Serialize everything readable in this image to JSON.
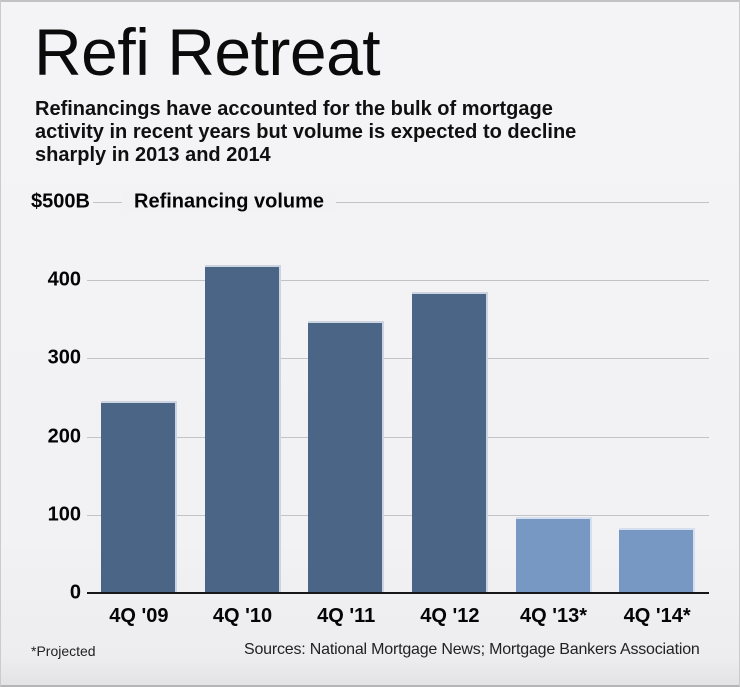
{
  "header": {
    "title": "Refi Retreat",
    "subtitle_lines": [
      "Refinancings have accounted for the bulk of mortgage",
      "activity in recent years but volume is expected to decline",
      "sharply in 2013 and 2014"
    ]
  },
  "chart_data": {
    "type": "bar",
    "title": "Refinancing volume",
    "y_top_label": "$500B",
    "categories": [
      "4Q '09",
      "4Q '10",
      "4Q '11",
      "4Q '12",
      "4Q '13*",
      "4Q '14*"
    ],
    "values": [
      245,
      420,
      348,
      385,
      97,
      83
    ],
    "projected": [
      false,
      false,
      false,
      false,
      true,
      true
    ],
    "yticks": [
      400,
      300,
      200,
      100,
      0
    ],
    "ylim": [
      0,
      500
    ],
    "grid": true,
    "legend_position": "top",
    "colors": {
      "bar_actual": "#4a6585",
      "bar_projected": "#7698c3",
      "bar_edge_actual": "#ccd4e1",
      "bar_edge_projected": "#d6dfee",
      "gridline": "#c3c3c7",
      "axis": "#161616",
      "background": "#f2f2f4"
    }
  },
  "footer": {
    "note": "*Projected",
    "sources": "Sources: National Mortgage News; Mortgage Bankers Association"
  }
}
